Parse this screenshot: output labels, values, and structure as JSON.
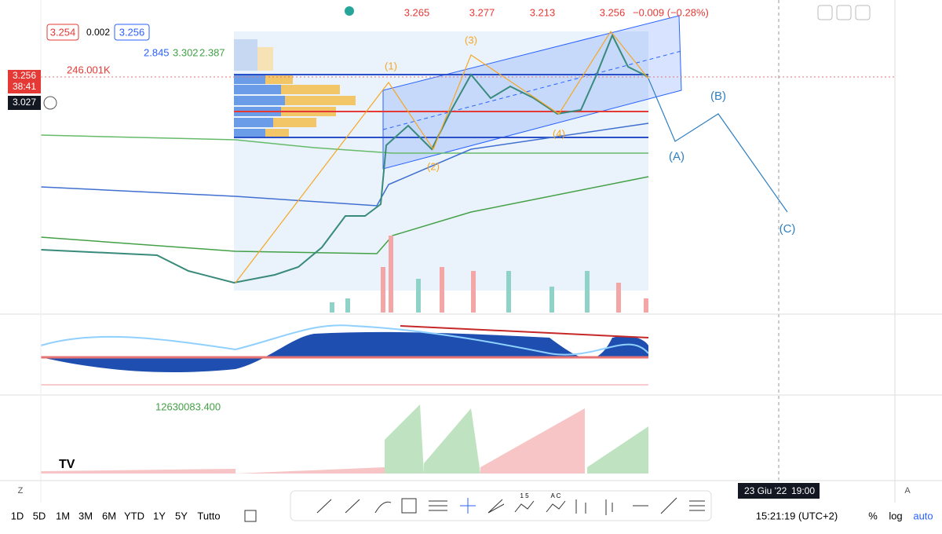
{
  "header": {
    "prices": [
      "3.265",
      "3.277",
      "3.213",
      "3.256"
    ],
    "change": "−0.009 (−0.28%)"
  },
  "legend": {
    "sell": "3.254",
    "spread": "0.002",
    "buy": "3.256",
    "ma_values": [
      "2.845",
      "3.302",
      "2.387"
    ],
    "volume": "246.001K"
  },
  "price_scale": {
    "last": "3.256",
    "countdown": "38:41",
    "cursor": "3.027"
  },
  "waves": [
    "(1)",
    "(2)",
    "(3)",
    "(4)",
    "(A)",
    "(B)",
    "(C)"
  ],
  "indicator": {
    "value": "12630083.400"
  },
  "time_axis": {
    "date": "23 Giu '22",
    "time": "19:00",
    "left_button": "Z",
    "right_button": "A"
  },
  "toolbar": {
    "labels": [
      "1 5",
      "A C"
    ]
  },
  "bottom_bar": {
    "ranges": [
      "1D",
      "5D",
      "1M",
      "3M",
      "6M",
      "YTD",
      "1Y",
      "5Y",
      "Tutto"
    ],
    "clock": "15:21:19 (UTC+2)",
    "options": [
      "%",
      "log",
      "auto"
    ]
  }
}
